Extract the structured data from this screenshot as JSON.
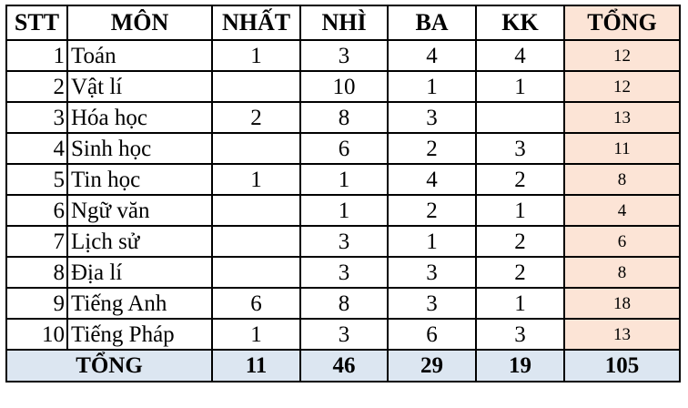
{
  "header": {
    "stt": "STT",
    "subject": "MÔN",
    "first": "NHẤT",
    "second": "NHÌ",
    "third": "BA",
    "consolation": "KK",
    "total": "TỔNG"
  },
  "rows": [
    {
      "stt": "1",
      "subject": "Toán",
      "first": "1",
      "second": "3",
      "third": "4",
      "consolation": "4",
      "total": "12"
    },
    {
      "stt": "2",
      "subject": "Vật lí",
      "first": "",
      "second": "10",
      "third": "1",
      "consolation": "1",
      "total": "12"
    },
    {
      "stt": "3",
      "subject": "Hóa học",
      "first": "2",
      "second": "8",
      "third": "3",
      "consolation": "",
      "total": "13"
    },
    {
      "stt": "4",
      "subject": "Sinh học",
      "first": "",
      "second": "6",
      "third": "2",
      "consolation": "3",
      "total": "11"
    },
    {
      "stt": "5",
      "subject": "Tin học",
      "first": "1",
      "second": "1",
      "third": "4",
      "consolation": "2",
      "total": "8"
    },
    {
      "stt": "6",
      "subject": "Ngữ văn",
      "first": "",
      "second": "1",
      "third": "2",
      "consolation": "1",
      "total": "4"
    },
    {
      "stt": "7",
      "subject": "Lịch sử",
      "first": "",
      "second": "3",
      "third": "1",
      "consolation": "2",
      "total": "6"
    },
    {
      "stt": "8",
      "subject": "Địa lí",
      "first": "",
      "second": "3",
      "third": "3",
      "consolation": "2",
      "total": "8"
    },
    {
      "stt": "9",
      "subject": "Tiếng Anh",
      "first": "6",
      "second": "8",
      "third": "3",
      "consolation": "1",
      "total": "18"
    },
    {
      "stt": "10",
      "subject": "Tiếng Pháp",
      "first": "1",
      "second": "3",
      "third": "6",
      "consolation": "3",
      "total": "13"
    }
  ],
  "totals": {
    "label": "TỔNG",
    "first": "11",
    "second": "46",
    "third": "29",
    "consolation": "19",
    "total": "105"
  },
  "colors": {
    "total_column_bg": "#fce4d6",
    "total_row_bg": "#dce6f1",
    "border": "#000000"
  }
}
